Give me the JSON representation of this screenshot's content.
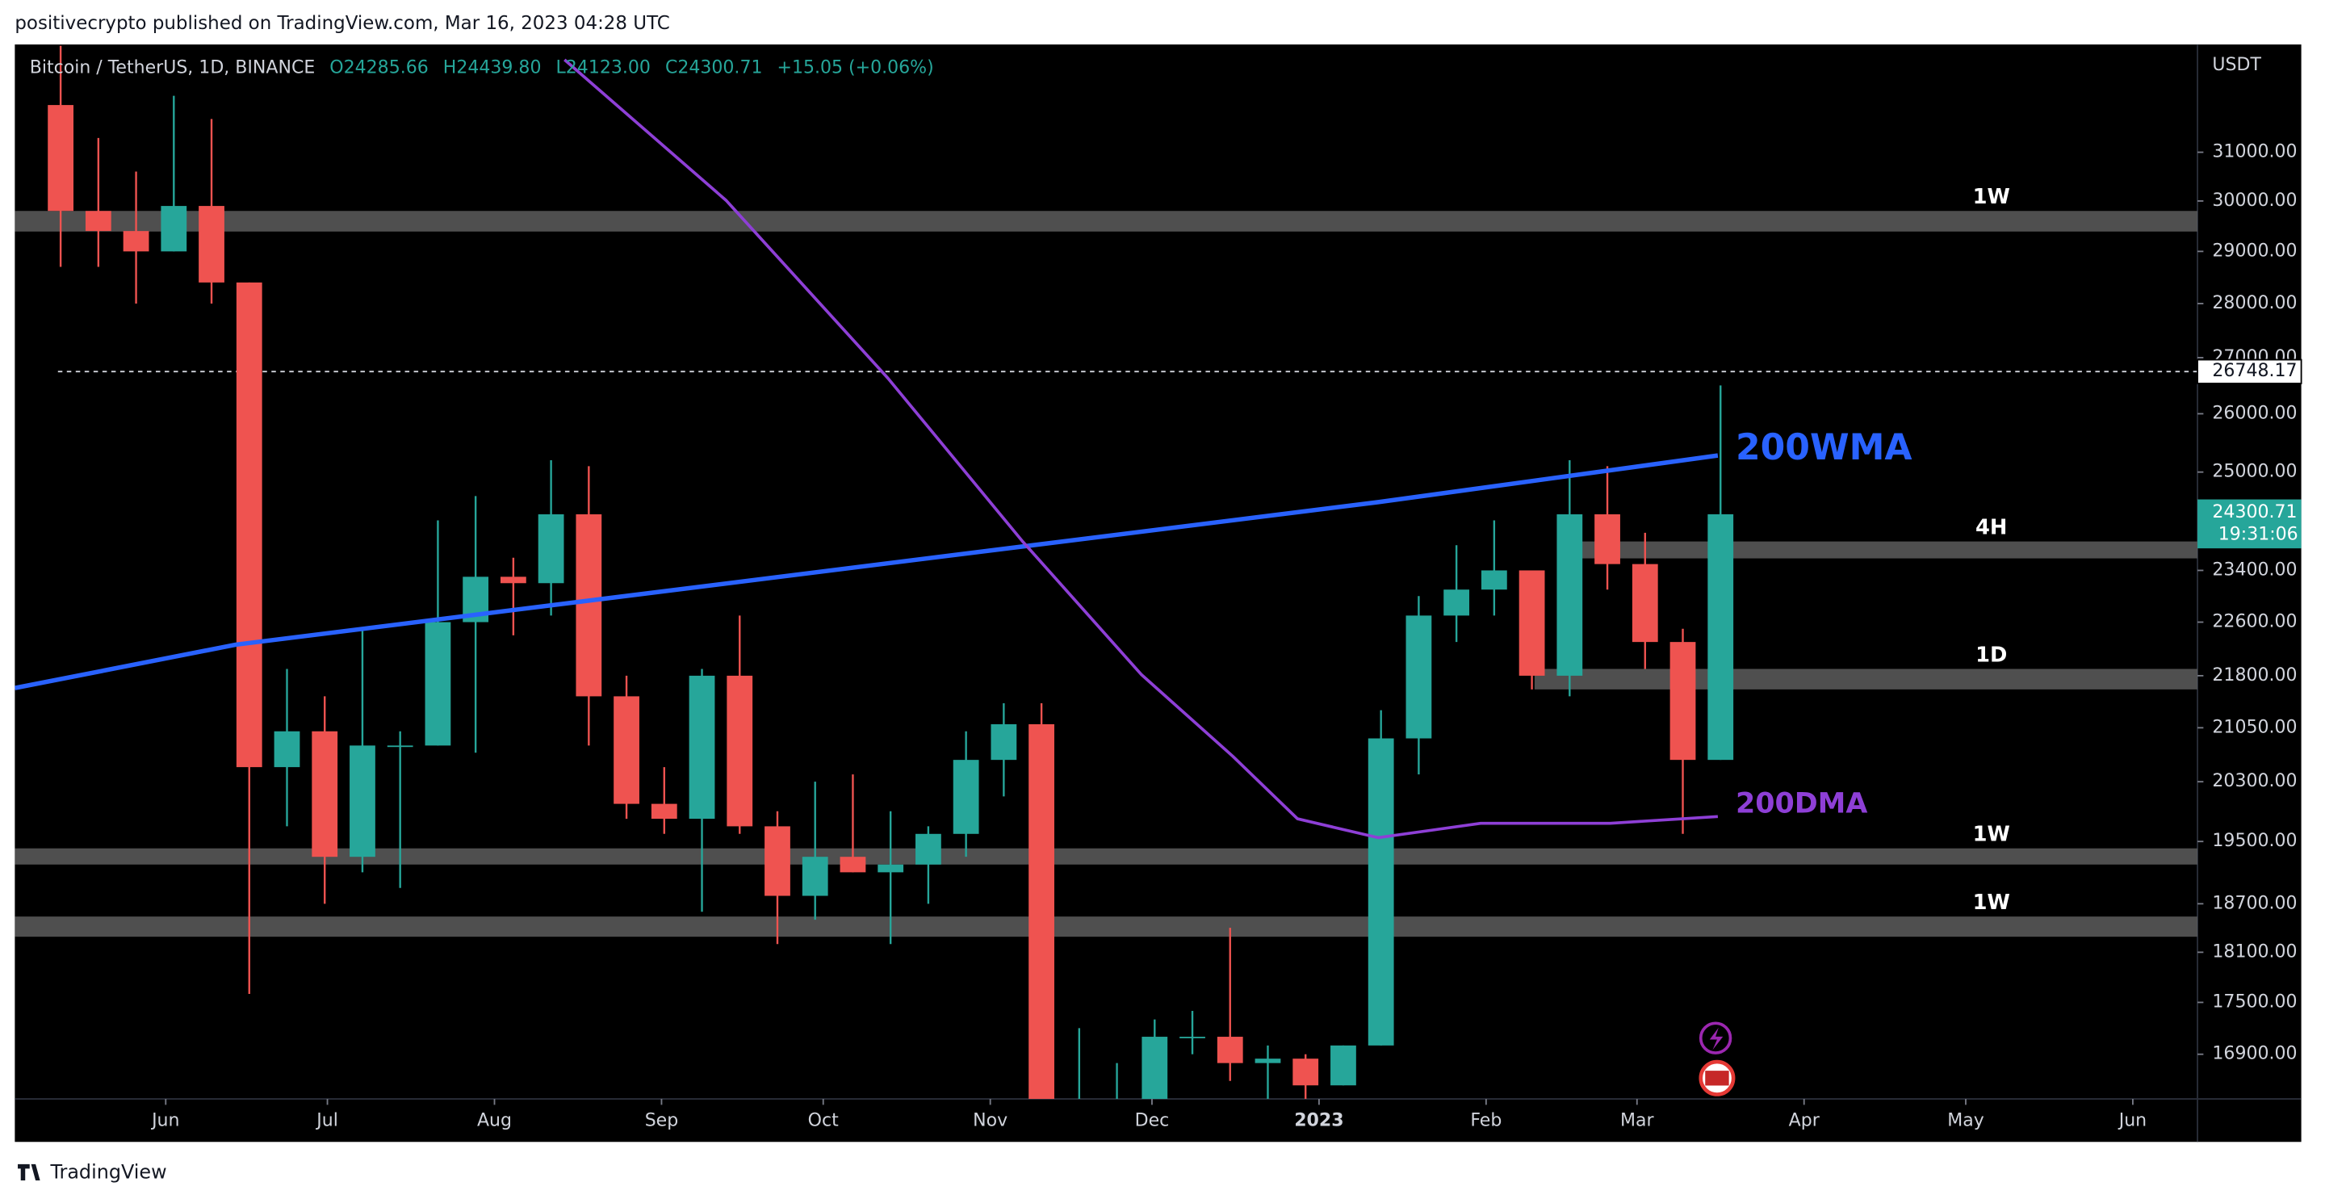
{
  "header": "positivecrypto published on TradingView.com, Mar 16, 2023 04:28 UTC",
  "footer": "TradingView",
  "chart_data": {
    "type": "candlestick",
    "symbol": "Bitcoin / TetherUS, 1D, BINANCE",
    "ohlc_legend": [
      "O24285.66",
      "H24439.80",
      "L24123.00",
      "C24300.71",
      "+15.05 (+0.06%)"
    ],
    "axis_unit": "USDT",
    "log_scale": true,
    "up_color": "#26a69a",
    "down_color": "#ef5350",
    "x": [
      "2022-05-09",
      "2022-05-16",
      "2022-05-23",
      "2022-05-30",
      "2022-06-06",
      "2022-06-13",
      "2022-06-20",
      "2022-06-27",
      "2022-07-04",
      "2022-07-11",
      "2022-07-18",
      "2022-07-25",
      "2022-08-01",
      "2022-08-08",
      "2022-08-15",
      "2022-08-22",
      "2022-08-29",
      "2022-09-05",
      "2022-09-12",
      "2022-09-19",
      "2022-09-26",
      "2022-10-03",
      "2022-10-10",
      "2022-10-17",
      "2022-10-24",
      "2022-10-31",
      "2022-11-07",
      "2022-11-14",
      "2022-11-21",
      "2022-11-28",
      "2022-12-05",
      "2022-12-12",
      "2022-12-19",
      "2022-12-26",
      "2023-01-02",
      "2023-01-09",
      "2023-01-16",
      "2023-01-23",
      "2023-01-30",
      "2023-02-06",
      "2023-02-13",
      "2023-02-20",
      "2023-02-27",
      "2023-03-06",
      "2023-03-13"
    ],
    "open": [
      32000,
      29800,
      29400,
      29000,
      29900,
      28400,
      20500,
      21000,
      19300,
      20800,
      20800,
      22600,
      23300,
      23200,
      24300,
      21500,
      20000,
      19800,
      21800,
      19700,
      18800,
      19300,
      19100,
      19200,
      19600,
      20600,
      21100,
      16300,
      16300,
      16400,
      17100,
      17100,
      16800,
      16850,
      16550,
      17000,
      20900,
      22700,
      23100,
      23400,
      21800,
      24300,
      23500,
      22300,
      20600
    ],
    "high": [
      33300,
      31300,
      30600,
      32200,
      31700,
      28400,
      21900,
      21500,
      22500,
      21000,
      24200,
      24600,
      23600,
      25200,
      25100,
      21800,
      20500,
      21900,
      22700,
      19900,
      20300,
      20400,
      19900,
      19700,
      21000,
      21400,
      21400,
      17200,
      16800,
      17300,
      17400,
      18400,
      17000,
      16900,
      17000,
      21300,
      23000,
      23800,
      24200,
      23400,
      25200,
      25100,
      24000,
      22500,
      26500
    ],
    "low": [
      28700,
      28700,
      28000,
      29000,
      28000,
      17600,
      19700,
      18700,
      19100,
      18900,
      20800,
      20700,
      22400,
      22700,
      20800,
      19800,
      19600,
      18600,
      19600,
      18200,
      18500,
      19100,
      18200,
      18700,
      19300,
      20100,
      15600,
      16300,
      15600,
      16000,
      16900,
      16600,
      16300,
      16400,
      16550,
      17000,
      20400,
      22300,
      22700,
      21600,
      21500,
      23100,
      21900,
      19600,
      20600
    ],
    "close": [
      29800,
      29400,
      29000,
      29900,
      28400,
      20500,
      21000,
      19300,
      20800,
      20800,
      22600,
      23300,
      23200,
      24300,
      21500,
      20000,
      19800,
      21800,
      19700,
      18800,
      19300,
      19100,
      19200,
      19600,
      20600,
      21100,
      16300,
      16300,
      16400,
      17100,
      17100,
      16800,
      16850,
      16550,
      17000,
      20900,
      22700,
      23100,
      23400,
      21800,
      24300,
      23500,
      22300,
      20600,
      24300.71
    ],
    "xlim": [
      "2022-05-04",
      "2023-06-13"
    ],
    "ylim": [
      16400,
      33330
    ],
    "yticks": [
      {
        "value": 31000,
        "label": "31000.00"
      },
      {
        "value": 30000,
        "label": "30000.00"
      },
      {
        "value": 29000,
        "label": "29000.00"
      },
      {
        "value": 28000,
        "label": "28000.00"
      },
      {
        "value": 27000,
        "label": "27000.00"
      },
      {
        "value": 26000,
        "label": "26000.00"
      },
      {
        "value": 25000,
        "label": "25000.00"
      },
      {
        "value": 23400,
        "label": "23400.00"
      },
      {
        "value": 22600,
        "label": "22600.00"
      },
      {
        "value": 21800,
        "label": "21800.00"
      },
      {
        "value": 21050,
        "label": "21050.00"
      },
      {
        "value": 20300,
        "label": "20300.00"
      },
      {
        "value": 19500,
        "label": "19500.00"
      },
      {
        "value": 18700,
        "label": "18700.00"
      },
      {
        "value": 18100,
        "label": "18100.00"
      },
      {
        "value": 17500,
        "label": "17500.00"
      },
      {
        "value": 16900,
        "label": "16900.00"
      }
    ],
    "xticks": [
      {
        "value": "2022-06-01",
        "label": "Jun"
      },
      {
        "value": "2022-07-01",
        "label": "Jul"
      },
      {
        "value": "2022-08-01",
        "label": "Aug"
      },
      {
        "value": "2022-09-01",
        "label": "Sep"
      },
      {
        "value": "2022-10-01",
        "label": "Oct"
      },
      {
        "value": "2022-11-01",
        "label": "Nov"
      },
      {
        "value": "2022-12-01",
        "label": "Dec"
      },
      {
        "value": "2023-01-01",
        "label": "2023"
      },
      {
        "value": "2023-02-01",
        "label": "Feb"
      },
      {
        "value": "2023-03-01",
        "label": "Mar"
      },
      {
        "value": "2023-04-01",
        "label": "Apr"
      },
      {
        "value": "2023-05-01",
        "label": "May"
      },
      {
        "value": "2023-06-01",
        "label": "Jun"
      }
    ],
    "lines": [
      {
        "name": "200WMA",
        "color": "#2962ff",
        "x": [
          "2022-05-04",
          "2022-06-14",
          "2023-01-12",
          "2023-03-16"
        ],
        "values": [
          21620,
          22260,
          24500,
          25280
        ]
      },
      {
        "name": "200DMA",
        "color": "#8e3fd6",
        "x": [
          "2022-08-14",
          "2022-09-13",
          "2022-10-13",
          "2022-11-07",
          "2022-11-29",
          "2022-12-16",
          "2022-12-28",
          "2023-01-12",
          "2023-01-31",
          "2023-02-24",
          "2023-03-16"
        ],
        "values": [
          32990,
          30010,
          26630,
          23860,
          21820,
          20650,
          19800,
          19550,
          19740,
          19740,
          19830
        ]
      }
    ],
    "zones": [
      {
        "label": "1W",
        "low": 29390,
        "high": 29800
      },
      {
        "label": "4H",
        "low": 23590,
        "high": 23860,
        "start": "2023-02-17"
      },
      {
        "label": "1D",
        "low": 21600,
        "high": 21900,
        "start": "2023-02-10"
      },
      {
        "label": "1W",
        "low": 19200,
        "high": 19410
      },
      {
        "label": "1W",
        "low": 18290,
        "high": 18540
      }
    ],
    "price_lines": [
      {
        "value": 26748.17,
        "start": "2022-05-12"
      }
    ],
    "last_price": {
      "value": 24300.71,
      "countdown": "19:31:06"
    }
  }
}
